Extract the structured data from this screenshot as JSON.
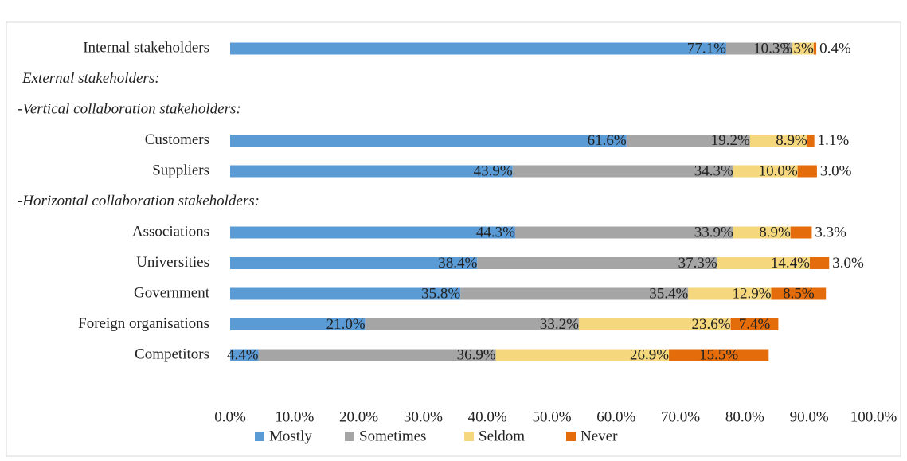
{
  "chart_data": {
    "type": "stacked_barh",
    "categories": [
      "Internal stakeholders",
      "External stakeholders:",
      "-Vertical collaboration stakeholders:",
      "Customers",
      "Suppliers",
      "-Horizontal collaboration stakeholders:",
      "Associations",
      "Universities",
      "Government",
      "Foreign organisations",
      "Competitors"
    ],
    "series": [
      {
        "name": "Mostly",
        "color": "#5b9bd5",
        "values": [
          77.1,
          null,
          null,
          61.6,
          43.9,
          null,
          44.3,
          38.4,
          35.8,
          21.0,
          4.4
        ],
        "value_labels": [
          "77.1%",
          null,
          null,
          "61.6%",
          "43.9%",
          null,
          "44.3%",
          "38.4%",
          "35.8%",
          "21.0%",
          "4.4%"
        ]
      },
      {
        "name": "Sometimes",
        "color": "#a5a5a5",
        "values": [
          10.3,
          null,
          null,
          19.2,
          34.3,
          null,
          33.9,
          37.3,
          35.4,
          33.2,
          36.9
        ],
        "value_labels": [
          "10.3%",
          null,
          null,
          "19.2%",
          "34.3%",
          null,
          "33.9%",
          "37.3%",
          "35.4%",
          "33.2%",
          "36.9%"
        ]
      },
      {
        "name": "Seldom",
        "color": "#f5d77e",
        "values": [
          3.3,
          null,
          null,
          8.9,
          10.0,
          null,
          8.9,
          14.4,
          12.9,
          23.6,
          26.9
        ],
        "value_labels": [
          "3.3%",
          null,
          null,
          "8.9%",
          "10.0%",
          null,
          "8.9%",
          "14.4%",
          "12.9%",
          "23.6%",
          "26.9%"
        ]
      },
      {
        "name": "Never",
        "color": "#e46c0a",
        "values": [
          0.4,
          null,
          null,
          1.1,
          3.0,
          null,
          3.3,
          3.0,
          8.5,
          7.4,
          15.5
        ],
        "value_labels": [
          "0.4%",
          null,
          null,
          "1.1%",
          "3.0%",
          null,
          "3.3%",
          "3.0%",
          "8.5%",
          "7.4%",
          "15.5%"
        ]
      }
    ],
    "xlim": [
      0,
      100
    ],
    "xticks": [
      {
        "value": 0,
        "label": "0.0%"
      },
      {
        "value": 10,
        "label": "10.0%"
      },
      {
        "value": 20,
        "label": "20.0%"
      },
      {
        "value": 30,
        "label": "30.0%"
      },
      {
        "value": 40,
        "label": "40.0%"
      },
      {
        "value": 50,
        "label": "50.0%"
      },
      {
        "value": 60,
        "label": "60.0%"
      },
      {
        "value": 70,
        "label": "70.0%"
      },
      {
        "value": 80,
        "label": "80.0%"
      },
      {
        "value": 90,
        "label": "90.0%"
      },
      {
        "value": 100,
        "label": "100.0%"
      }
    ],
    "legend": "bottom"
  }
}
